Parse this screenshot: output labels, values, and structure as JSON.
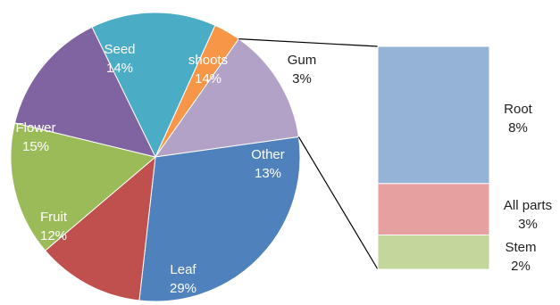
{
  "chart_data": {
    "type": "pie",
    "title": "",
    "slices": [
      {
        "label": "shoots",
        "value": 14,
        "display": "14%",
        "color": "#4bacc6"
      },
      {
        "label": "Gum",
        "value": 3,
        "display": "3%",
        "color": "#f79646"
      },
      {
        "label": "Other",
        "value": 13,
        "display": "13%",
        "color": "#b3a2c7"
      },
      {
        "label": "Leaf",
        "value": 29,
        "display": "29%",
        "color": "#4f81bd"
      },
      {
        "label": "Fruit",
        "value": 12,
        "display": "12%",
        "color": "#c0504d"
      },
      {
        "label": "Flower",
        "value": 15,
        "display": "15%",
        "color": "#9bbb59"
      },
      {
        "label": "Seed",
        "value": 14,
        "display": "14%",
        "color": "#8064a2"
      }
    ],
    "breakdown": {
      "of_slice": "Other",
      "type": "stacked-bar",
      "segments": [
        {
          "label": "Root",
          "value": 8,
          "display": "8%",
          "color": "#95b3d7"
        },
        {
          "label": "All parts",
          "value": 3,
          "display": "3%",
          "color": "#e6a0a0"
        },
        {
          "label": "Stem",
          "value": 2,
          "display": "2%",
          "color": "#c3d69b"
        }
      ]
    }
  }
}
